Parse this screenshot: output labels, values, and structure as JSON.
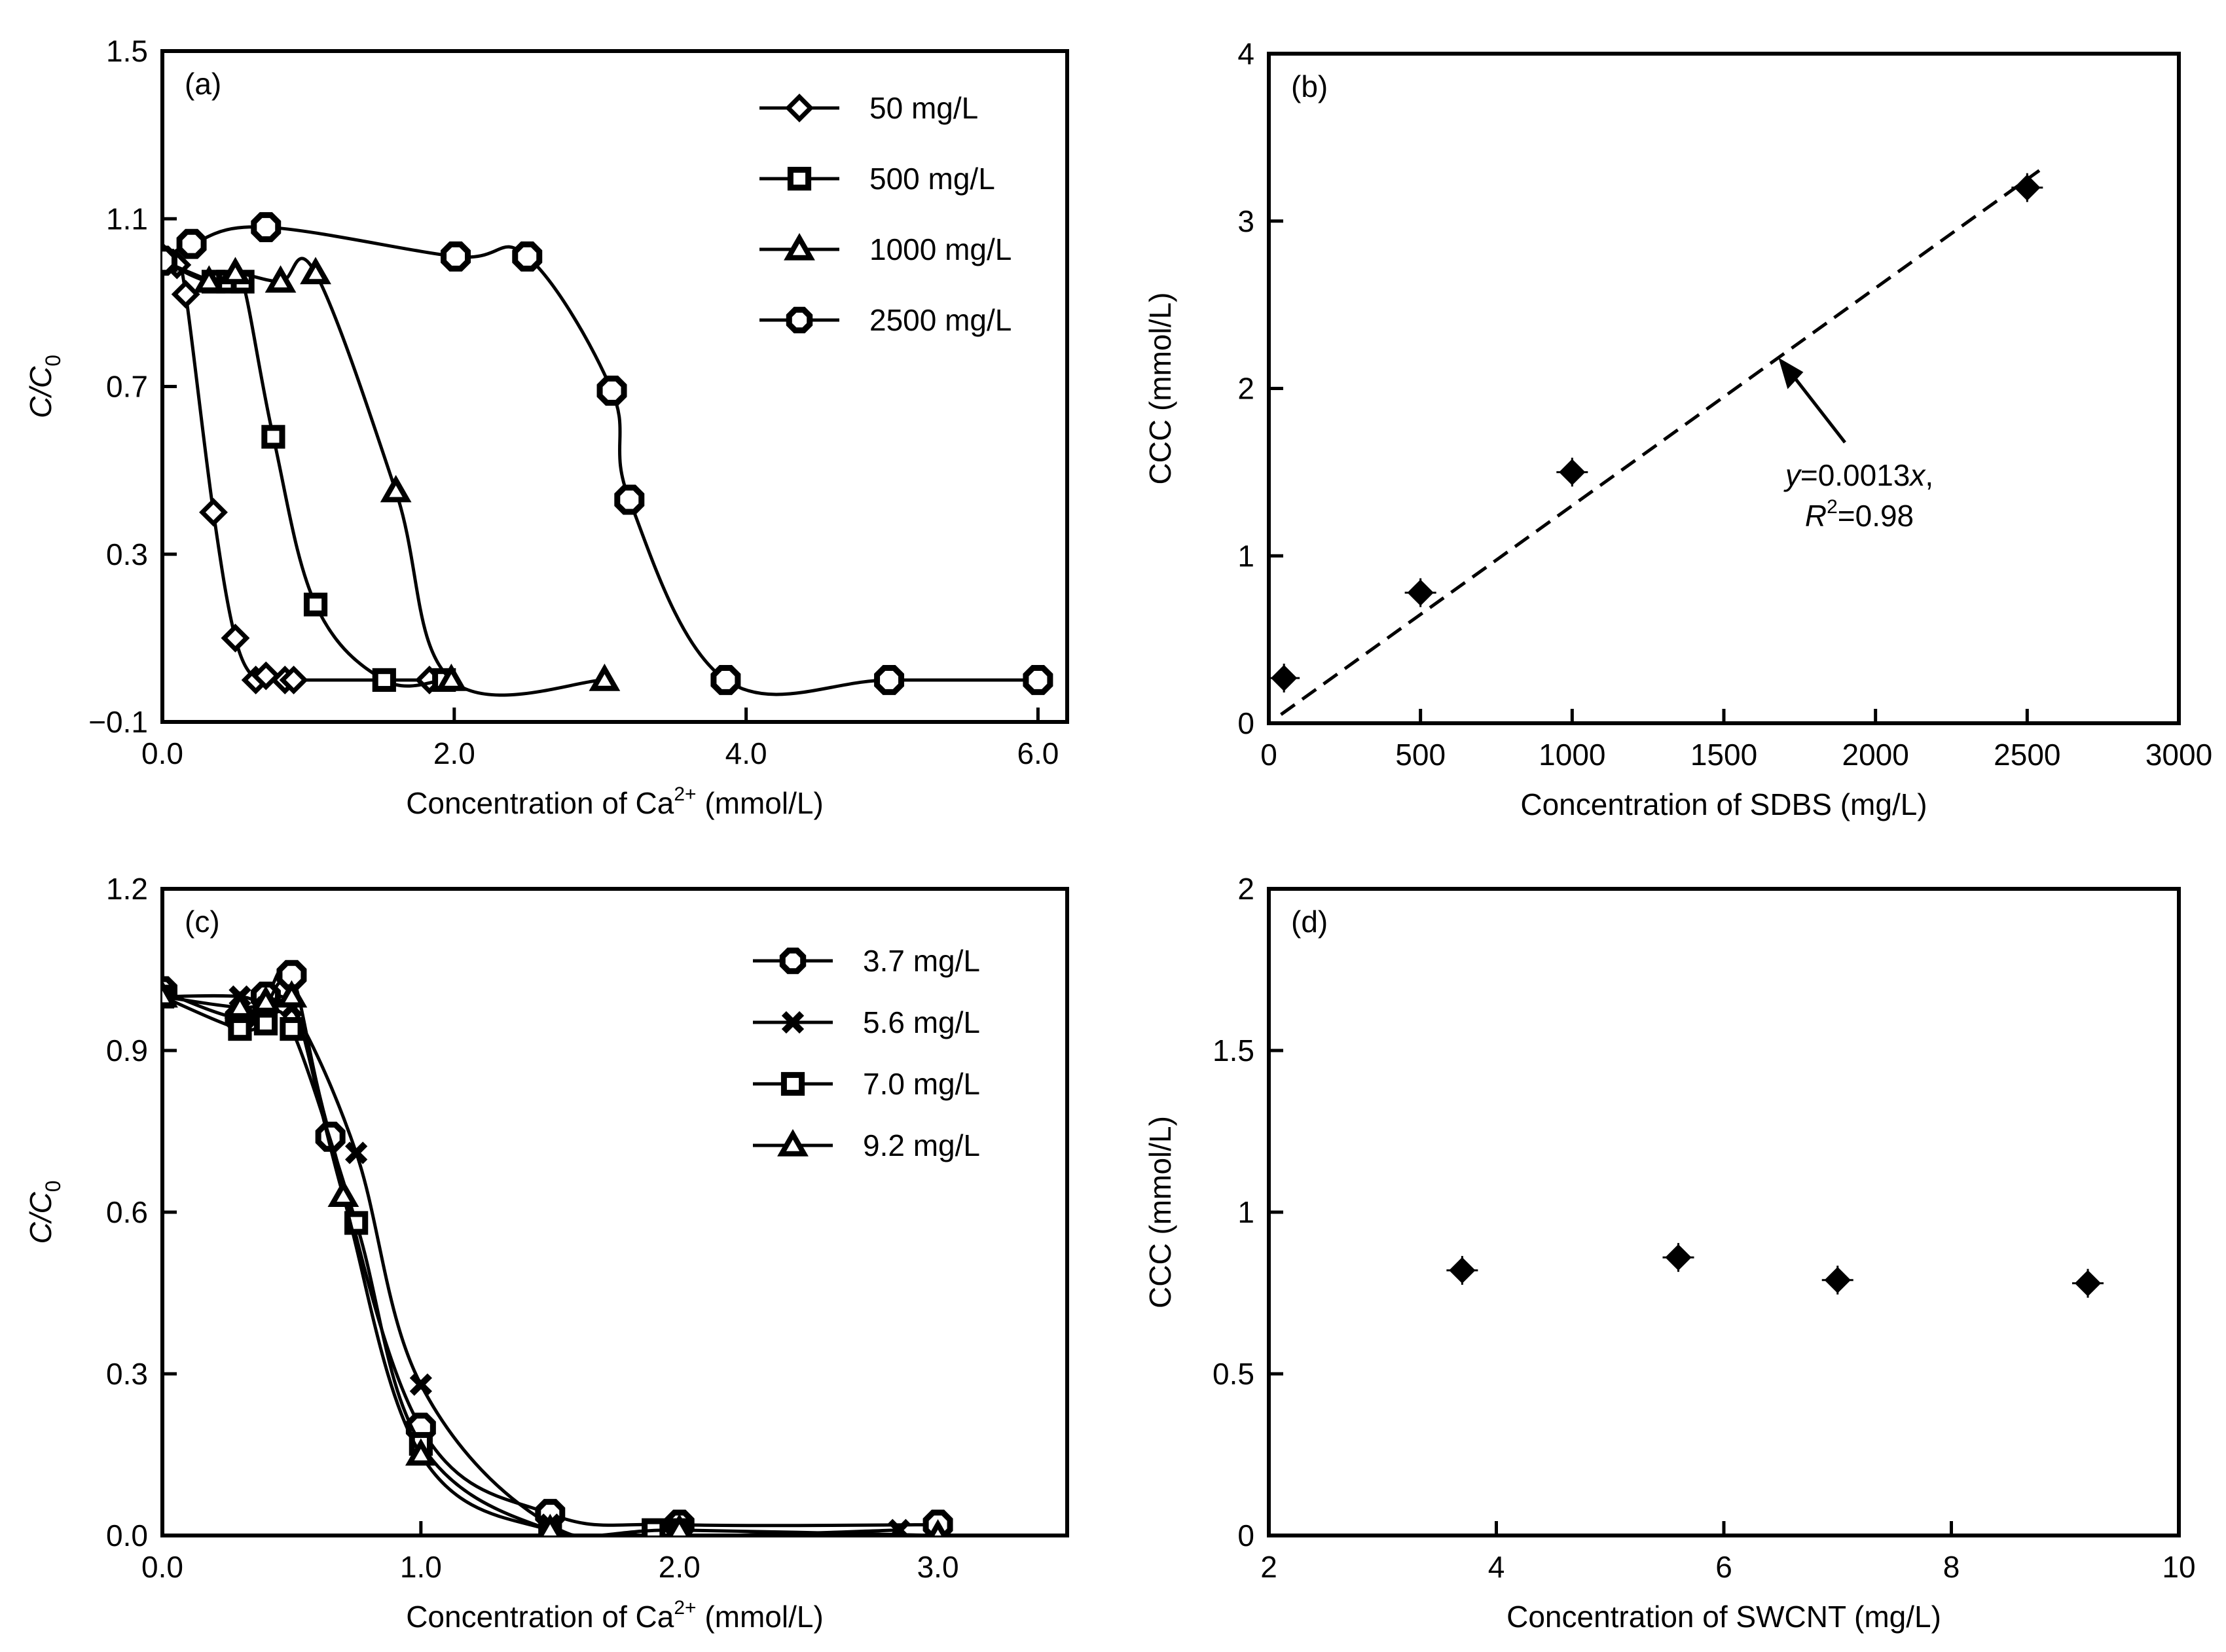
{
  "chart_data": [
    {
      "id": "a",
      "type": "line",
      "panel_label": "(a)",
      "xlabel": "Concentration of Ca",
      "xlabel_sup": "2+",
      "xlabel_suffix": " (mmol/L)",
      "ylabel": "C/C",
      "ylabel_sub": "0",
      "xlim": [
        0,
        6.2
      ],
      "ylim": [
        -0.1,
        1.5
      ],
      "xticks": [
        0,
        2,
        4,
        6
      ],
      "xtick_labels": [
        "0.0",
        "2.0",
        "4.0",
        "6.0"
      ],
      "yticks": [
        -0.1,
        0.3,
        0.7,
        1.1,
        1.5
      ],
      "ytick_labels": [
        "−0.1",
        "0.3",
        "0.7",
        "1.1",
        "1.5"
      ],
      "grid": false,
      "legend_position": "top-right",
      "series": [
        {
          "name": "50 mg/L",
          "marker": "diamond",
          "x": [
            0,
            0.1,
            0.16,
            0.35,
            0.5,
            0.64,
            0.71,
            0.84,
            0.9,
            1.83
          ],
          "y": [
            1.01,
            0.99,
            0.92,
            0.4,
            0.1,
            0.0,
            0.01,
            0.0,
            0.0,
            0.0
          ]
        },
        {
          "name": "500 mg/L",
          "marker": "square",
          "x": [
            0,
            0.35,
            0.45,
            0.55,
            0.76,
            1.05,
            1.52,
            1.93
          ],
          "y": [
            1.0,
            0.95,
            0.95,
            0.95,
            0.58,
            0.18,
            0.0,
            0.0
          ]
        },
        {
          "name": "1000 mg/L",
          "marker": "triangle",
          "x": [
            0,
            0.32,
            0.5,
            0.81,
            1.05,
            1.6,
            1.98,
            3.03
          ],
          "y": [
            1.0,
            0.95,
            0.97,
            0.95,
            0.97,
            0.45,
            0.0,
            0.0
          ]
        },
        {
          "name": "2500 mg/L",
          "marker": "octagon",
          "x": [
            0,
            0.2,
            0.71,
            2.01,
            2.5,
            3.08,
            3.2,
            3.86,
            4.98,
            6.0
          ],
          "y": [
            1.0,
            1.04,
            1.08,
            1.01,
            1.01,
            0.69,
            0.43,
            0.0,
            0.0,
            0.0
          ]
        }
      ]
    },
    {
      "id": "b",
      "type": "scatter",
      "panel_label": "(b)",
      "xlabel": "Concentration of SDBS (mg/L)",
      "ylabel": "CCC (mmol/L)",
      "xlim": [
        0,
        3000
      ],
      "ylim": [
        0,
        4
      ],
      "xticks": [
        0,
        500,
        1000,
        1500,
        2000,
        2500,
        3000
      ],
      "xtick_labels": [
        "0",
        "500",
        "1000",
        "1500",
        "2000",
        "2500",
        "3000"
      ],
      "yticks": [
        0,
        1,
        2,
        3,
        4
      ],
      "ytick_labels": [
        "0",
        "1",
        "2",
        "3",
        "4"
      ],
      "grid": false,
      "series": [
        {
          "name": "CCC",
          "marker": "filled-diamond",
          "x": [
            50,
            500,
            1000,
            2500
          ],
          "y": [
            0.27,
            0.78,
            1.5,
            3.2
          ]
        }
      ],
      "fit": {
        "slope": 0.0013,
        "x_range": [
          40,
          2540
        ],
        "style": "dashed"
      },
      "annotation": {
        "line1_var": "y",
        "line1_rest": "=0.0013",
        "line1_var2": "x",
        "line1_end": ",",
        "line2_var": "R",
        "line2_sup": "2",
        "line2_rest": "=0.98",
        "points_to_x": 1680
      }
    },
    {
      "id": "c",
      "type": "line",
      "panel_label": "(c)",
      "xlabel": "Concentration of Ca",
      "xlabel_sup": "2+",
      "xlabel_suffix": " (mmol/L)",
      "ylabel": "C/C",
      "ylabel_sub": "0",
      "xlim": [
        0,
        3.5
      ],
      "ylim": [
        0,
        1.2
      ],
      "xticks": [
        0,
        1,
        2,
        3
      ],
      "xtick_labels": [
        "0.0",
        "1.0",
        "2.0",
        "3.0"
      ],
      "yticks": [
        0,
        0.3,
        0.6,
        0.9,
        1.2
      ],
      "ytick_labels": [
        "0.0",
        "0.3",
        "0.6",
        "0.9",
        "1.2"
      ],
      "grid": false,
      "legend_position": "top-right",
      "series": [
        {
          "name": "3.7 mg/L",
          "marker": "octagon",
          "x": [
            0,
            0.3,
            0.4,
            0.5,
            0.65,
            1.0,
            1.5,
            2.0,
            3.0
          ],
          "y": [
            1.01,
            0.96,
            1.0,
            1.04,
            0.74,
            0.2,
            0.04,
            0.02,
            0.02
          ]
        },
        {
          "name": "5.6 mg/L",
          "marker": "x",
          "x": [
            0,
            0.3,
            0.4,
            0.5,
            0.75,
            1.0,
            1.5,
            2.0,
            2.85
          ],
          "y": [
            1.0,
            1.0,
            0.98,
            0.98,
            0.71,
            0.28,
            0.02,
            0.0,
            0.01
          ]
        },
        {
          "name": "7.0 mg/L",
          "marker": "square",
          "x": [
            0,
            0.3,
            0.4,
            0.5,
            0.75,
            1.0,
            1.5,
            1.9,
            2.0
          ],
          "y": [
            1.0,
            0.94,
            0.95,
            0.94,
            0.58,
            0.17,
            0.01,
            0.01,
            0.01
          ]
        },
        {
          "name": "9.2 mg/L",
          "marker": "triangle",
          "x": [
            0,
            0.3,
            0.4,
            0.5,
            0.7,
            1.0,
            1.5,
            2.0,
            3.0
          ],
          "y": [
            1.0,
            0.98,
            0.99,
            1.0,
            0.63,
            0.15,
            0.01,
            0.01,
            0.0
          ]
        }
      ]
    },
    {
      "id": "d",
      "type": "scatter",
      "panel_label": "(d)",
      "xlabel": "Concentration of SWCNT (mg/L)",
      "ylabel": "CCC (mmol/L)",
      "xlim": [
        2,
        10
      ],
      "ylim": [
        0,
        2
      ],
      "xticks": [
        2,
        4,
        6,
        8,
        10
      ],
      "xtick_labels": [
        "2",
        "4",
        "6",
        "8",
        "10"
      ],
      "yticks": [
        0,
        0.5,
        1,
        1.5,
        2
      ],
      "ytick_labels": [
        "0",
        "0.5",
        "1",
        "1.5",
        "2"
      ],
      "grid": false,
      "series": [
        {
          "name": "CCC",
          "marker": "filled-diamond",
          "x": [
            3.7,
            5.6,
            7.0,
            9.2
          ],
          "y": [
            0.82,
            0.86,
            0.79,
            0.78
          ]
        }
      ]
    }
  ]
}
